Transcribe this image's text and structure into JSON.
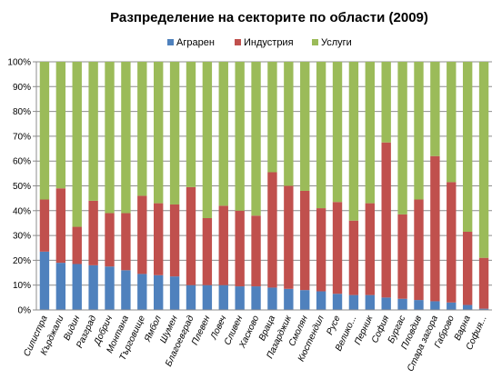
{
  "chart_data": {
    "type": "bar",
    "stacked": true,
    "normalized": true,
    "title": "Разпределение на секторите по области (2009)",
    "legend_position": "top",
    "grid": true,
    "ylim": [
      0,
      100
    ],
    "y_ticks": [
      "0%",
      "10%",
      "20%",
      "30%",
      "40%",
      "50%",
      "60%",
      "70%",
      "80%",
      "90%",
      "100%"
    ],
    "categories": [
      "Силистра",
      "Кърджали",
      "Видин",
      "Разград",
      "Добрич",
      "Монтана",
      "Търговище",
      "Ямбол",
      "Шумен",
      "Благоевград",
      "Плевен",
      "Ловеч",
      "Сливен",
      "Хасково",
      "Враца",
      "Пазарджик",
      "Смолян",
      "Кюстендил",
      "Русе",
      "Велико...",
      "Перник",
      "София",
      "Бургас",
      "Пловдив",
      "Стара загора",
      "Габрово",
      "Варна",
      "София..."
    ],
    "series": [
      {
        "name": "Аграрен",
        "color": "#4f81bd",
        "values": [
          23.5,
          19,
          18.5,
          18,
          17.5,
          16,
          14.5,
          14,
          13.5,
          10,
          10,
          10,
          9.5,
          9.5,
          9,
          8.5,
          8,
          7.5,
          6.5,
          6,
          6,
          5,
          4.5,
          4,
          3.5,
          3,
          2,
          0.5
        ]
      },
      {
        "name": "Индустрия",
        "color": "#c0504d",
        "values": [
          21,
          30,
          15,
          26,
          21.5,
          23,
          31.5,
          29,
          29,
          39.5,
          27,
          32,
          30.5,
          28.5,
          46.5,
          41.5,
          40,
          33.5,
          37,
          30,
          37,
          62.5,
          34,
          40.5,
          58.5,
          48.5,
          29.5,
          20.5
        ]
      },
      {
        "name": "Услуги",
        "color": "#9bbb59",
        "values": [
          55.5,
          51,
          66.5,
          56,
          61,
          61,
          54,
          57,
          57.5,
          50.5,
          63,
          58,
          60,
          62,
          44.5,
          50,
          52,
          59,
          56.5,
          64,
          57,
          32.5,
          61.5,
          55.5,
          38,
          48.5,
          68.5,
          79
        ]
      }
    ]
  }
}
